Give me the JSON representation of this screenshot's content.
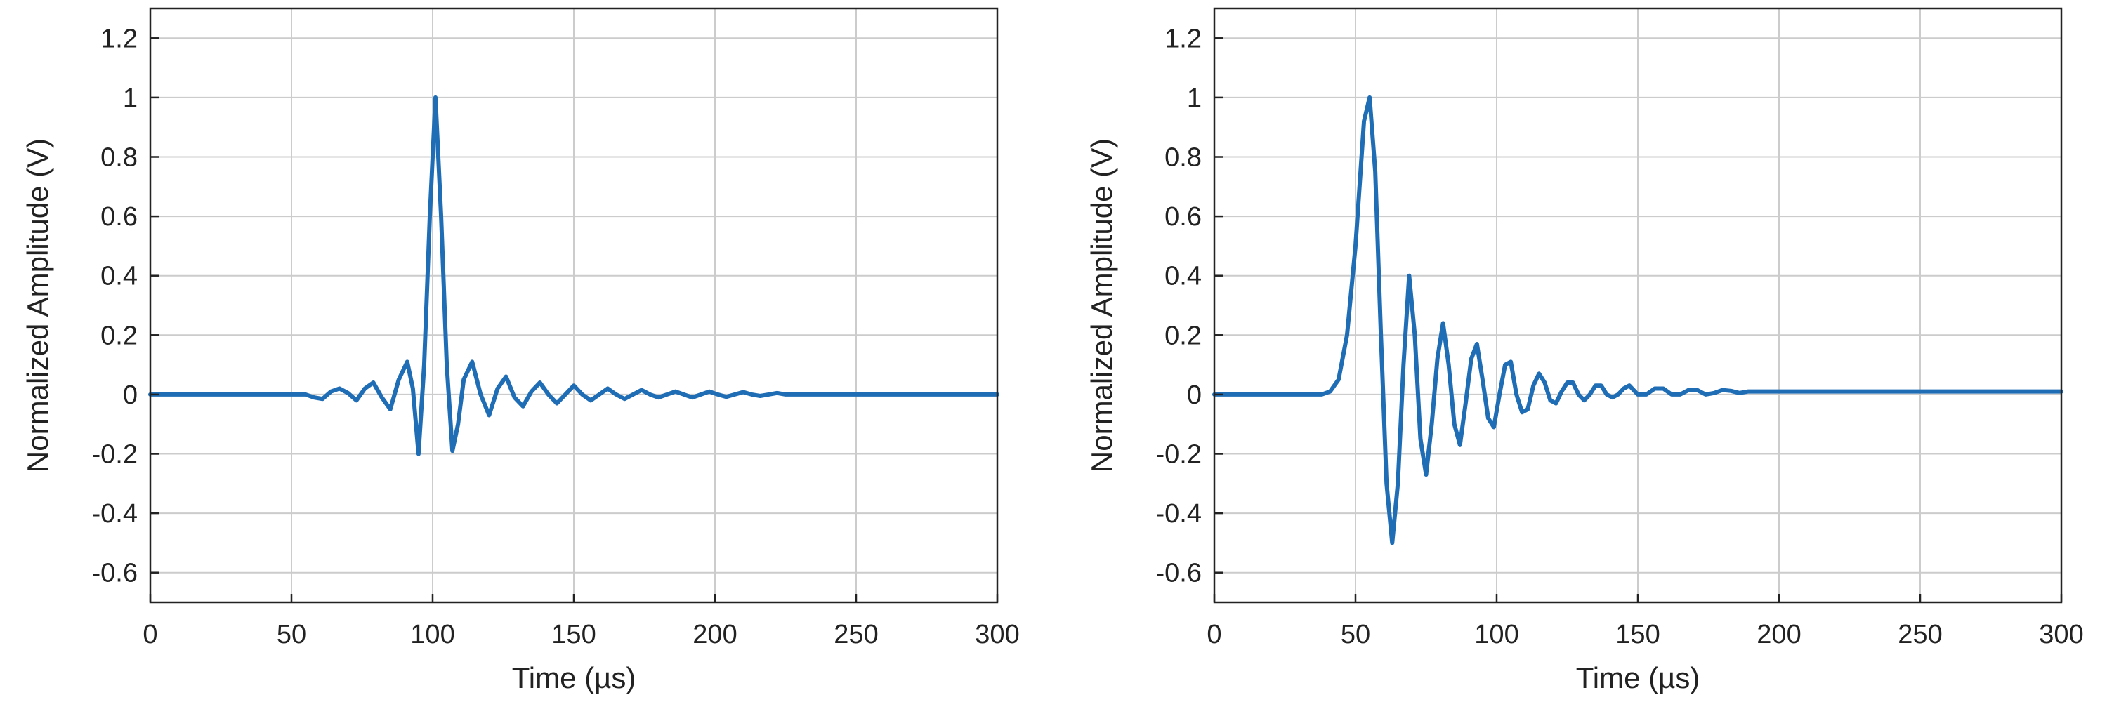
{
  "chart_data": [
    {
      "type": "line",
      "xlabel": "Time (µs)",
      "ylabel": "Normalized Amplitude (V)",
      "xlim": [
        0,
        300
      ],
      "ylim": [
        -0.7,
        1.3
      ],
      "xticks": [
        0,
        50,
        100,
        150,
        200,
        250,
        300
      ],
      "yticks": [
        -0.6,
        -0.4,
        -0.2,
        0,
        0.2,
        0.4,
        0.6,
        0.8,
        1,
        1.2
      ],
      "grid": true,
      "line_color": "#1f6db5",
      "series": [
        {
          "x": [
            0,
            55,
            58,
            61,
            64,
            67,
            70,
            73,
            76,
            79,
            82,
            85,
            88,
            91,
            93,
            95,
            97,
            99,
            101,
            103,
            105,
            107,
            109,
            111,
            114,
            117,
            120,
            123,
            126,
            129,
            132,
            135,
            138,
            141,
            144,
            147,
            150,
            153,
            156,
            159,
            162,
            165,
            168,
            171,
            174,
            177,
            180,
            183,
            186,
            189,
            192,
            195,
            198,
            201,
            204,
            207,
            210,
            213,
            216,
            219,
            222,
            225,
            300
          ],
          "y": [
            0,
            0,
            -0.01,
            -0.015,
            0.01,
            0.02,
            0.005,
            -0.02,
            0.02,
            0.04,
            -0.01,
            -0.05,
            0.05,
            0.11,
            0.02,
            -0.2,
            0.1,
            0.6,
            1.0,
            0.6,
            0.1,
            -0.19,
            -0.1,
            0.05,
            0.11,
            0.0,
            -0.07,
            0.02,
            0.06,
            -0.01,
            -0.04,
            0.01,
            0.04,
            0.0,
            -0.03,
            0.0,
            0.03,
            0.0,
            -0.02,
            0.0,
            0.02,
            0.0,
            -0.015,
            0.0,
            0.015,
            0.0,
            -0.01,
            0.0,
            0.01,
            0.0,
            -0.01,
            0.0,
            0.01,
            0.0,
            -0.008,
            0.0,
            0.008,
            0.0,
            -0.005,
            0.0,
            0.005,
            0.0,
            0.0
          ]
        }
      ]
    },
    {
      "type": "line",
      "xlabel": "Time (µs)",
      "ylabel": "Normalized Amplitude (V)",
      "xlim": [
        0,
        300
      ],
      "ylim": [
        -0.7,
        1.3
      ],
      "xticks": [
        0,
        50,
        100,
        150,
        200,
        250,
        300
      ],
      "yticks": [
        -0.6,
        -0.4,
        -0.2,
        0,
        0.2,
        0.4,
        0.6,
        0.8,
        1,
        1.2
      ],
      "grid": true,
      "line_color": "#1f6db5",
      "series": [
        {
          "x": [
            0,
            38,
            41,
            44,
            47,
            50,
            53,
            55,
            57,
            59,
            61,
            63,
            65,
            67,
            69,
            71,
            73,
            75,
            77,
            79,
            81,
            83,
            85,
            87,
            89,
            91,
            93,
            95,
            97,
            99,
            101,
            103,
            105,
            107,
            109,
            111,
            113,
            115,
            117,
            119,
            121,
            123,
            125,
            127,
            129,
            131,
            133,
            135,
            137,
            139,
            141,
            143,
            145,
            147,
            150,
            153,
            156,
            159,
            162,
            165,
            168,
            171,
            174,
            177,
            180,
            183,
            186,
            189,
            192,
            195,
            198,
            300
          ],
          "y": [
            0,
            0,
            0.01,
            0.05,
            0.2,
            0.5,
            0.92,
            1.0,
            0.75,
            0.2,
            -0.3,
            -0.5,
            -0.3,
            0.1,
            0.4,
            0.2,
            -0.15,
            -0.27,
            -0.1,
            0.12,
            0.24,
            0.1,
            -0.1,
            -0.17,
            -0.03,
            0.12,
            0.17,
            0.05,
            -0.08,
            -0.11,
            0.0,
            0.1,
            0.11,
            0.0,
            -0.06,
            -0.05,
            0.03,
            0.07,
            0.04,
            -0.02,
            -0.03,
            0.01,
            0.04,
            0.04,
            0.0,
            -0.02,
            0.0,
            0.03,
            0.03,
            0.0,
            -0.01,
            0.0,
            0.02,
            0.03,
            0.0,
            0.0,
            0.02,
            0.02,
            0.0,
            0.0,
            0.015,
            0.015,
            0.0,
            0.005,
            0.015,
            0.012,
            0.005,
            0.01,
            0.01,
            0.01,
            0.01,
            0.01
          ]
        }
      ]
    }
  ]
}
